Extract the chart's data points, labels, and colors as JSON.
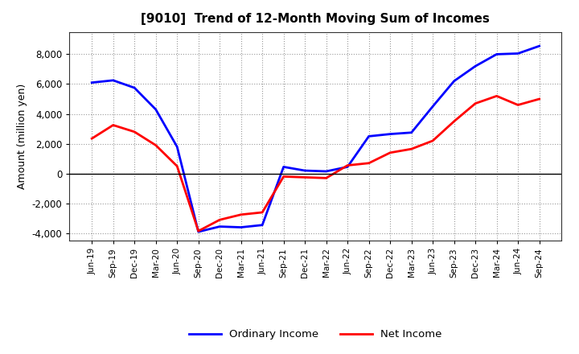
{
  "title": "[9010]  Trend of 12-Month Moving Sum of Incomes",
  "ylabel": "Amount (million yen)",
  "background_color": "#ffffff",
  "grid_color": "#999999",
  "ordinary_income_color": "#0000ff",
  "net_income_color": "#ff0000",
  "x_labels": [
    "Jun-19",
    "Sep-19",
    "Dec-19",
    "Mar-20",
    "Jun-20",
    "Sep-20",
    "Dec-20",
    "Mar-21",
    "Jun-21",
    "Sep-21",
    "Dec-21",
    "Mar-22",
    "Jun-22",
    "Sep-22",
    "Dec-22",
    "Mar-23",
    "Jun-23",
    "Sep-23",
    "Dec-23",
    "Mar-24",
    "Jun-24",
    "Sep-24"
  ],
  "ordinary_income": [
    6100,
    6250,
    5750,
    4300,
    1800,
    -3900,
    -3550,
    -3600,
    -3450,
    450,
    200,
    150,
    450,
    2500,
    2650,
    2750,
    4500,
    6200,
    7200,
    8000,
    8050,
    8550
  ],
  "net_income": [
    2350,
    3250,
    2800,
    1900,
    500,
    -3850,
    -3100,
    -2750,
    -2600,
    -200,
    -250,
    -300,
    550,
    700,
    1400,
    1650,
    2200,
    3500,
    4700,
    5200,
    4600,
    5000
  ],
  "ylim": [
    -4500,
    9500
  ],
  "yticks": [
    -4000,
    -2000,
    0,
    2000,
    4000,
    6000,
    8000
  ],
  "legend_labels": [
    "Ordinary Income",
    "Net Income"
  ]
}
